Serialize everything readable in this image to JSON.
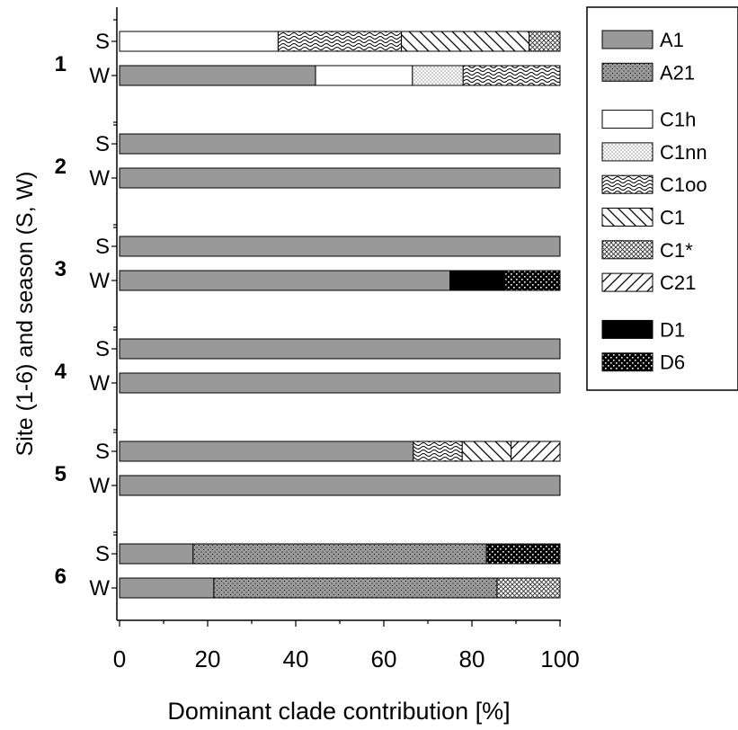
{
  "chart_data": {
    "type": "bar",
    "orientation": "horizontal",
    "stacked": true,
    "xlabel": "Dominant clade contribution [%]",
    "ylabel": "Site (1-6) and season (S, W)",
    "xlim": [
      0,
      100
    ],
    "xticks": [
      "0",
      "20",
      "40",
      "60",
      "80",
      "100"
    ],
    "grid": false,
    "legend_position": "right",
    "legend": [
      {
        "name": "A1",
        "pattern": "solid-gray",
        "color": "#999999"
      },
      {
        "name": "A21",
        "pattern": "dots-gray",
        "color": "#999999"
      },
      {
        "name": "C1h",
        "pattern": "white",
        "color": "#ffffff"
      },
      {
        "name": "C1nn",
        "pattern": "fine-dots",
        "color": "#ffffff"
      },
      {
        "name": "C1oo",
        "pattern": "waves",
        "color": "#ffffff"
      },
      {
        "name": "C1",
        "pattern": "back-diagonal",
        "color": "#ffffff"
      },
      {
        "name": "C1*",
        "pattern": "crosshatch",
        "color": "#ffffff"
      },
      {
        "name": "C21",
        "pattern": "forward-diagonal",
        "color": "#ffffff"
      },
      {
        "name": "D1",
        "pattern": "solid-black",
        "color": "#000000"
      },
      {
        "name": "D6",
        "pattern": "dots-black",
        "color": "#000000"
      }
    ],
    "sites": [
      {
        "site": "1",
        "bars": [
          {
            "season": "S",
            "segments": [
              {
                "clade": "C1h",
                "value": 36
              },
              {
                "clade": "C1oo",
                "value": 28
              },
              {
                "clade": "C1",
                "value": 29
              },
              {
                "clade": "C1*",
                "value": 7
              }
            ]
          },
          {
            "season": "W",
            "segments": [
              {
                "clade": "A1",
                "value": 44.5
              },
              {
                "clade": "C1h",
                "value": 22
              },
              {
                "clade": "C1nn",
                "value": 11.5
              },
              {
                "clade": "C1oo",
                "value": 22
              }
            ]
          }
        ]
      },
      {
        "site": "2",
        "bars": [
          {
            "season": "S",
            "segments": [
              {
                "clade": "A1",
                "value": 100
              }
            ]
          },
          {
            "season": "W",
            "segments": [
              {
                "clade": "A1",
                "value": 100
              }
            ]
          }
        ]
      },
      {
        "site": "3",
        "bars": [
          {
            "season": "S",
            "segments": [
              {
                "clade": "A1",
                "value": 100
              }
            ]
          },
          {
            "season": "W",
            "segments": [
              {
                "clade": "A1",
                "value": 75
              },
              {
                "clade": "D1",
                "value": 12.5
              },
              {
                "clade": "D6",
                "value": 12.5
              }
            ]
          }
        ]
      },
      {
        "site": "4",
        "bars": [
          {
            "season": "S",
            "segments": [
              {
                "clade": "A1",
                "value": 100
              }
            ]
          },
          {
            "season": "W",
            "segments": [
              {
                "clade": "A1",
                "value": 100
              }
            ]
          }
        ]
      },
      {
        "site": "5",
        "bars": [
          {
            "season": "S",
            "segments": [
              {
                "clade": "A1",
                "value": 66.7
              },
              {
                "clade": "C1oo",
                "value": 11.1
              },
              {
                "clade": "C1",
                "value": 11.1
              },
              {
                "clade": "C21",
                "value": 11.1
              }
            ]
          },
          {
            "season": "W",
            "segments": [
              {
                "clade": "A1",
                "value": 100
              }
            ]
          }
        ]
      },
      {
        "site": "6",
        "bars": [
          {
            "season": "S",
            "segments": [
              {
                "clade": "A1",
                "value": 16.7
              },
              {
                "clade": "A21",
                "value": 66.6
              },
              {
                "clade": "D6",
                "value": 16.7
              }
            ]
          },
          {
            "season": "W",
            "segments": [
              {
                "clade": "A1",
                "value": 21.4
              },
              {
                "clade": "A21",
                "value": 64.3
              },
              {
                "clade": "C1*",
                "value": 14.3
              }
            ]
          }
        ]
      }
    ]
  }
}
